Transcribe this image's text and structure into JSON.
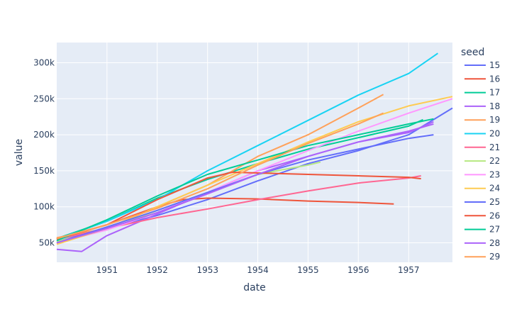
{
  "chart_data": {
    "type": "line",
    "xlabel": "date",
    "ylabel": "value",
    "legend_title": "seed",
    "legend_position": "right",
    "grid": true,
    "xlim": [
      "1950-01-01",
      "1957-11-15"
    ],
    "ylim": [
      23000,
      328000
    ],
    "x_ticks": [
      "1951",
      "1952",
      "1953",
      "1954",
      "1955",
      "1956",
      "1957"
    ],
    "y_ticks": [
      50000,
      100000,
      150000,
      200000,
      250000,
      300000
    ],
    "y_tick_labels": [
      "50k",
      "100k",
      "150k",
      "200k",
      "250k",
      "300k"
    ],
    "series": [
      {
        "name": "15",
        "color": "#636efa",
        "points": [
          [
            "1950-01-01",
            52000
          ],
          [
            "1951-01-01",
            70000
          ],
          [
            "1952-01-01",
            88000
          ],
          [
            "1953-01-01",
            110000
          ],
          [
            "1954-01-01",
            136000
          ],
          [
            "1955-01-01",
            160000
          ],
          [
            "1956-01-01",
            178000
          ],
          [
            "1957-01-01",
            200000
          ],
          [
            "1957-11-15",
            237000
          ]
        ]
      },
      {
        "name": "16",
        "color": "#EF553B",
        "points": [
          [
            "1950-01-01",
            56000
          ],
          [
            "1951-01-01",
            75000
          ],
          [
            "1952-01-01",
            100000
          ],
          [
            "1952-07-01",
            110000
          ],
          [
            "1953-01-01",
            112000
          ],
          [
            "1954-01-01",
            111000
          ],
          [
            "1955-01-01",
            108000
          ],
          [
            "1956-01-01",
            106000
          ],
          [
            "1956-09-15",
            104000
          ]
        ]
      },
      {
        "name": "17",
        "color": "#00cc96",
        "points": [
          [
            "1950-01-01",
            56000
          ],
          [
            "1951-01-01",
            80000
          ],
          [
            "1952-01-01",
            112000
          ],
          [
            "1953-01-01",
            138000
          ],
          [
            "1954-01-01",
            160000
          ],
          [
            "1955-01-01",
            180000
          ],
          [
            "1956-01-01",
            196000
          ],
          [
            "1957-01-01",
            212000
          ],
          [
            "1957-04-15",
            221000
          ]
        ]
      },
      {
        "name": "18",
        "color": "#ab63fa",
        "points": [
          [
            "1950-01-01",
            41000
          ],
          [
            "1950-07-01",
            38000
          ],
          [
            "1951-01-01",
            60000
          ],
          [
            "1952-01-01",
            90000
          ],
          [
            "1953-01-01",
            120000
          ],
          [
            "1954-01-01",
            150000
          ],
          [
            "1955-01-01",
            170000
          ],
          [
            "1956-01-01",
            190000
          ],
          [
            "1957-01-01",
            203000
          ],
          [
            "1957-07-01",
            218000
          ]
        ]
      },
      {
        "name": "19",
        "color": "#FFA15A",
        "points": [
          [
            "1950-01-01",
            57000
          ],
          [
            "1951-01-01",
            70000
          ],
          [
            "1952-01-01",
            100000
          ],
          [
            "1953-01-01",
            130000
          ],
          [
            "1954-01-01",
            170000
          ],
          [
            "1955-01-01",
            200000
          ],
          [
            "1956-01-01",
            237000
          ],
          [
            "1956-07-01",
            256000
          ]
        ]
      },
      {
        "name": "20",
        "color": "#19d3f3",
        "points": [
          [
            "1950-01-01",
            55000
          ],
          [
            "1951-01-01",
            80000
          ],
          [
            "1952-01-01",
            110000
          ],
          [
            "1953-01-01",
            150000
          ],
          [
            "1954-01-01",
            185000
          ],
          [
            "1955-01-01",
            220000
          ],
          [
            "1956-01-01",
            255000
          ],
          [
            "1957-01-01",
            285000
          ],
          [
            "1957-08-01",
            313000
          ]
        ]
      },
      {
        "name": "21",
        "color": "#FF6692",
        "points": [
          [
            "1950-01-01",
            55000
          ],
          [
            "1951-01-01",
            70000
          ],
          [
            "1952-01-01",
            85000
          ],
          [
            "1953-01-01",
            97000
          ],
          [
            "1954-01-01",
            110000
          ],
          [
            "1955-01-01",
            122000
          ],
          [
            "1956-01-01",
            133000
          ],
          [
            "1957-01-01",
            140000
          ],
          [
            "1957-04-01",
            143000
          ]
        ]
      },
      {
        "name": "22",
        "color": "#B6E880",
        "points": [
          [
            "1950-01-01",
            52000
          ],
          [
            "1951-01-01",
            68000
          ],
          [
            "1952-01-01",
            95000
          ],
          [
            "1953-01-01",
            120000
          ],
          [
            "1954-01-01",
            145000
          ],
          [
            "1955-01-01",
            158000
          ],
          [
            "1955-04-01",
            162000
          ]
        ]
      },
      {
        "name": "23",
        "color": "#FF97FF",
        "points": [
          [
            "1950-01-01",
            50000
          ],
          [
            "1951-01-01",
            68000
          ],
          [
            "1952-01-01",
            92000
          ],
          [
            "1953-01-01",
            120000
          ],
          [
            "1954-01-01",
            150000
          ],
          [
            "1955-01-01",
            178000
          ],
          [
            "1956-01-01",
            205000
          ],
          [
            "1957-01-01",
            230000
          ],
          [
            "1957-11-15",
            250000
          ]
        ]
      },
      {
        "name": "24",
        "color": "#FECB52",
        "points": [
          [
            "1950-01-01",
            48000
          ],
          [
            "1951-01-01",
            70000
          ],
          [
            "1952-01-01",
            100000
          ],
          [
            "1953-01-01",
            130000
          ],
          [
            "1954-01-01",
            160000
          ],
          [
            "1955-01-01",
            190000
          ],
          [
            "1956-01-01",
            218000
          ],
          [
            "1957-01-01",
            240000
          ],
          [
            "1957-11-15",
            253000
          ]
        ]
      },
      {
        "name": "25",
        "color": "#636efa",
        "points": [
          [
            "1950-01-01",
            50000
          ],
          [
            "1951-01-01",
            72000
          ],
          [
            "1952-01-01",
            95000
          ],
          [
            "1953-01-01",
            120000
          ],
          [
            "1954-01-01",
            145000
          ],
          [
            "1955-01-01",
            165000
          ],
          [
            "1956-01-01",
            180000
          ],
          [
            "1957-01-01",
            195000
          ],
          [
            "1957-07-01",
            200000
          ]
        ]
      },
      {
        "name": "26",
        "color": "#EF553B",
        "points": [
          [
            "1950-01-01",
            55000
          ],
          [
            "1951-01-01",
            75000
          ],
          [
            "1952-01-01",
            110000
          ],
          [
            "1953-01-01",
            140000
          ],
          [
            "1953-07-01",
            148000
          ],
          [
            "1954-01-01",
            147000
          ],
          [
            "1955-01-01",
            145000
          ],
          [
            "1956-01-01",
            143000
          ],
          [
            "1957-01-01",
            141000
          ],
          [
            "1957-04-01",
            139000
          ]
        ]
      },
      {
        "name": "27",
        "color": "#00cc96",
        "points": [
          [
            "1950-01-01",
            53000
          ],
          [
            "1951-01-01",
            82000
          ],
          [
            "1952-01-01",
            115000
          ],
          [
            "1953-01-01",
            145000
          ],
          [
            "1954-01-01",
            165000
          ],
          [
            "1955-01-01",
            185000
          ],
          [
            "1956-01-01",
            200000
          ],
          [
            "1957-01-01",
            215000
          ],
          [
            "1957-07-01",
            222000
          ]
        ]
      },
      {
        "name": "28",
        "color": "#ab63fa",
        "points": [
          [
            "1950-01-01",
            50000
          ],
          [
            "1951-01-01",
            70000
          ],
          [
            "1952-01-01",
            92000
          ],
          [
            "1953-01-01",
            118000
          ],
          [
            "1954-01-01",
            145000
          ],
          [
            "1955-01-01",
            170000
          ],
          [
            "1956-01-01",
            190000
          ],
          [
            "1957-01-01",
            205000
          ],
          [
            "1957-07-01",
            215000
          ]
        ]
      },
      {
        "name": "29",
        "color": "#FFA15A",
        "points": [
          [
            "1950-01-01",
            56000
          ],
          [
            "1951-01-01",
            75000
          ],
          [
            "1952-01-01",
            98000
          ],
          [
            "1953-01-01",
            125000
          ],
          [
            "1954-01-01",
            158000
          ],
          [
            "1955-01-01",
            188000
          ],
          [
            "1956-01-01",
            215000
          ],
          [
            "1956-07-01",
            230000
          ]
        ]
      }
    ]
  }
}
